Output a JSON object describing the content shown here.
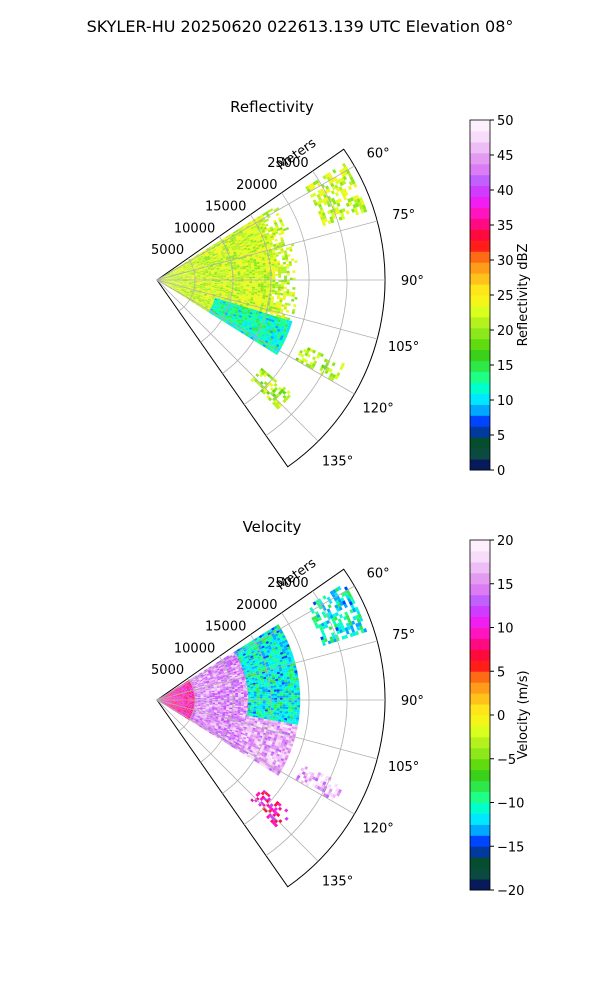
{
  "figure": {
    "title": "SKYLER-HU  20250620  022613.139 UTC Elevation 08°"
  },
  "chart_data": [
    {
      "type": "heatmap",
      "subtype": "polar-sector radar PPI",
      "title": "Reflectivity",
      "range_label": "Meters",
      "range_ticks": [
        "5000",
        "10000",
        "15000",
        "20000",
        "25000"
      ],
      "angle_ticks": [
        "60°",
        "75°",
        "90°",
        "105°",
        "120°",
        "135°"
      ],
      "theta_range_deg": [
        55,
        145
      ],
      "r_range": [
        0,
        30000
      ],
      "grid": true,
      "colorbar": {
        "label": "Reflectivity dBZ",
        "ticks": [
          "0",
          "5",
          "10",
          "15",
          "20",
          "25",
          "30",
          "35",
          "40",
          "45",
          "50"
        ],
        "range": [
          0,
          50
        ],
        "colors": [
          "#061a5c",
          "#0a4a40",
          "#064d30",
          "#003a9c",
          "#0044ff",
          "#00a8ff",
          "#00e8ff",
          "#00ffcc",
          "#1dff86",
          "#2ee84a",
          "#39d11a",
          "#5fdb10",
          "#8ce81a",
          "#b5f21d",
          "#d9ff1e",
          "#f5f51a",
          "#ffe61a",
          "#ffc21a",
          "#ff9c1a",
          "#ff6a16",
          "#ff1e1a",
          "#ff0a3c",
          "#ff0a80",
          "#ff14c0",
          "#f01ef0",
          "#cf3cff",
          "#c061ff",
          "#dc7cf5",
          "#e29bf0",
          "#efbdf5",
          "#f8dcfb",
          "#fdf0fd"
        ]
      },
      "echoes": [
        {
          "region": "main cluster",
          "theta": [
            58,
            122
          ],
          "r": [
            0,
            18500
          ],
          "dominant_value": 22
        },
        {
          "region": "low-value fringe",
          "theta": [
            107,
            122
          ],
          "r": [
            8000,
            18500
          ],
          "dominant_value": 12
        },
        {
          "region": "far cells",
          "theta": [
            58,
            72
          ],
          "r": [
            23000,
            29000
          ],
          "dominant_value": 22
        },
        {
          "region": "cell at 117°",
          "theta": [
            114,
            120
          ],
          "r": [
            21000,
            27000
          ],
          "dominant_value": 21
        },
        {
          "region": "cell at 135°",
          "theta": [
            130,
            137
          ],
          "r": [
            18000,
            23000
          ],
          "dominant_value": 21
        }
      ]
    },
    {
      "type": "heatmap",
      "subtype": "polar-sector radar PPI",
      "title": "Velocity",
      "range_label": "Meters",
      "range_ticks": [
        "5000",
        "10000",
        "15000",
        "20000",
        "25000"
      ],
      "angle_ticks": [
        "60°",
        "75°",
        "90°",
        "105°",
        "120°",
        "135°"
      ],
      "theta_range_deg": [
        55,
        145
      ],
      "r_range": [
        0,
        30000
      ],
      "grid": true,
      "colorbar": {
        "label": "Velocity (m/s)",
        "ticks": [
          "−20",
          "−15",
          "−10",
          "−5",
          "0",
          "5",
          "10",
          "15",
          "20"
        ],
        "range": [
          -20,
          20
        ],
        "colors": [
          "#061a5c",
          "#0a4a40",
          "#064d30",
          "#003a9c",
          "#0044ff",
          "#00a8ff",
          "#00e8ff",
          "#00ffcc",
          "#1dff86",
          "#2ee84a",
          "#39d11a",
          "#5fdb10",
          "#8ce81a",
          "#b5f21d",
          "#d9ff1e",
          "#f5f51a",
          "#ffe61a",
          "#ffc21a",
          "#ff9c1a",
          "#ff6a16",
          "#ff1e1a",
          "#ff0a3c",
          "#ff0a80",
          "#ff14c0",
          "#f01ef0",
          "#cf3cff",
          "#c061ff",
          "#dc7cf5",
          "#e29bf0",
          "#efbdf5",
          "#f8dcfb",
          "#fdf0fd"
        ]
      },
      "echoes": [
        {
          "region": "near field",
          "theta": [
            58,
            122
          ],
          "r": [
            0,
            5000
          ],
          "dominant_value": 9
        },
        {
          "region": "mid field",
          "theta": [
            58,
            122
          ],
          "r": [
            5000,
            12000
          ],
          "dominant_value": 15
        },
        {
          "region": "outer field",
          "theta": [
            58,
            100
          ],
          "r": [
            12000,
            18500
          ],
          "dominant_value": -11
        },
        {
          "region": "outer south",
          "theta": [
            100,
            122
          ],
          "r": [
            12000,
            18500
          ],
          "dominant_value": 16
        },
        {
          "region": "far cells",
          "theta": [
            58,
            72
          ],
          "r": [
            23000,
            29000
          ],
          "dominant_value": -11
        },
        {
          "region": "cell at 117°",
          "theta": [
            114,
            120
          ],
          "r": [
            21000,
            27000
          ],
          "dominant_value": 16
        },
        {
          "region": "cell at 135°",
          "theta": [
            130,
            137
          ],
          "r": [
            18000,
            23000
          ],
          "dominant_value": 9
        }
      ]
    }
  ]
}
